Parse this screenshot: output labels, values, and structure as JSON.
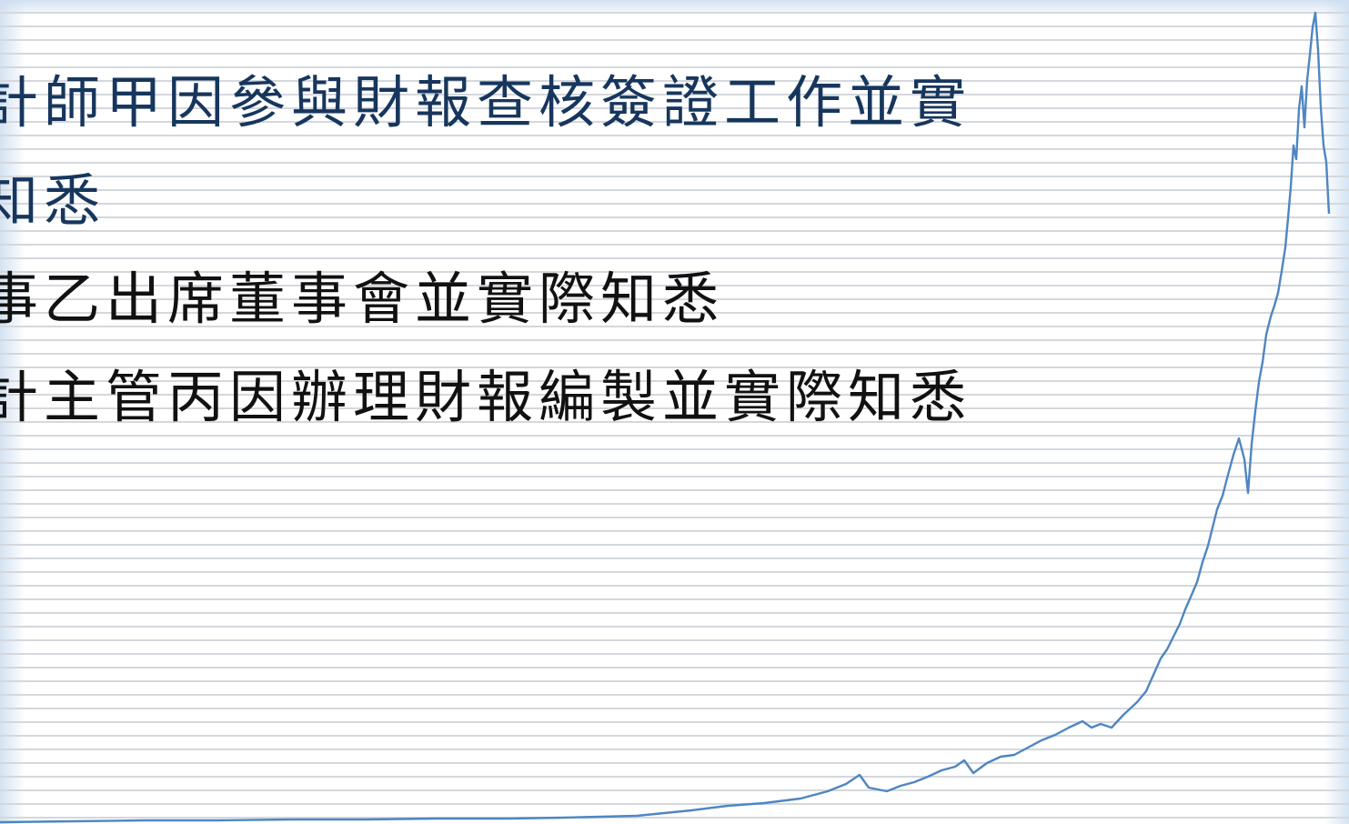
{
  "slide": {
    "lines": [
      "計師甲因參與財報查核簽證工作並實",
      "知悉",
      "事乙出席董事會並實際知悉",
      "計主管丙因辦理財報編製並實際知悉"
    ]
  },
  "colors": {
    "heading_text": "#17365d",
    "body_text": "#111111",
    "trend_line": "#4f86c2",
    "stripe": "#d4d8dd"
  }
}
